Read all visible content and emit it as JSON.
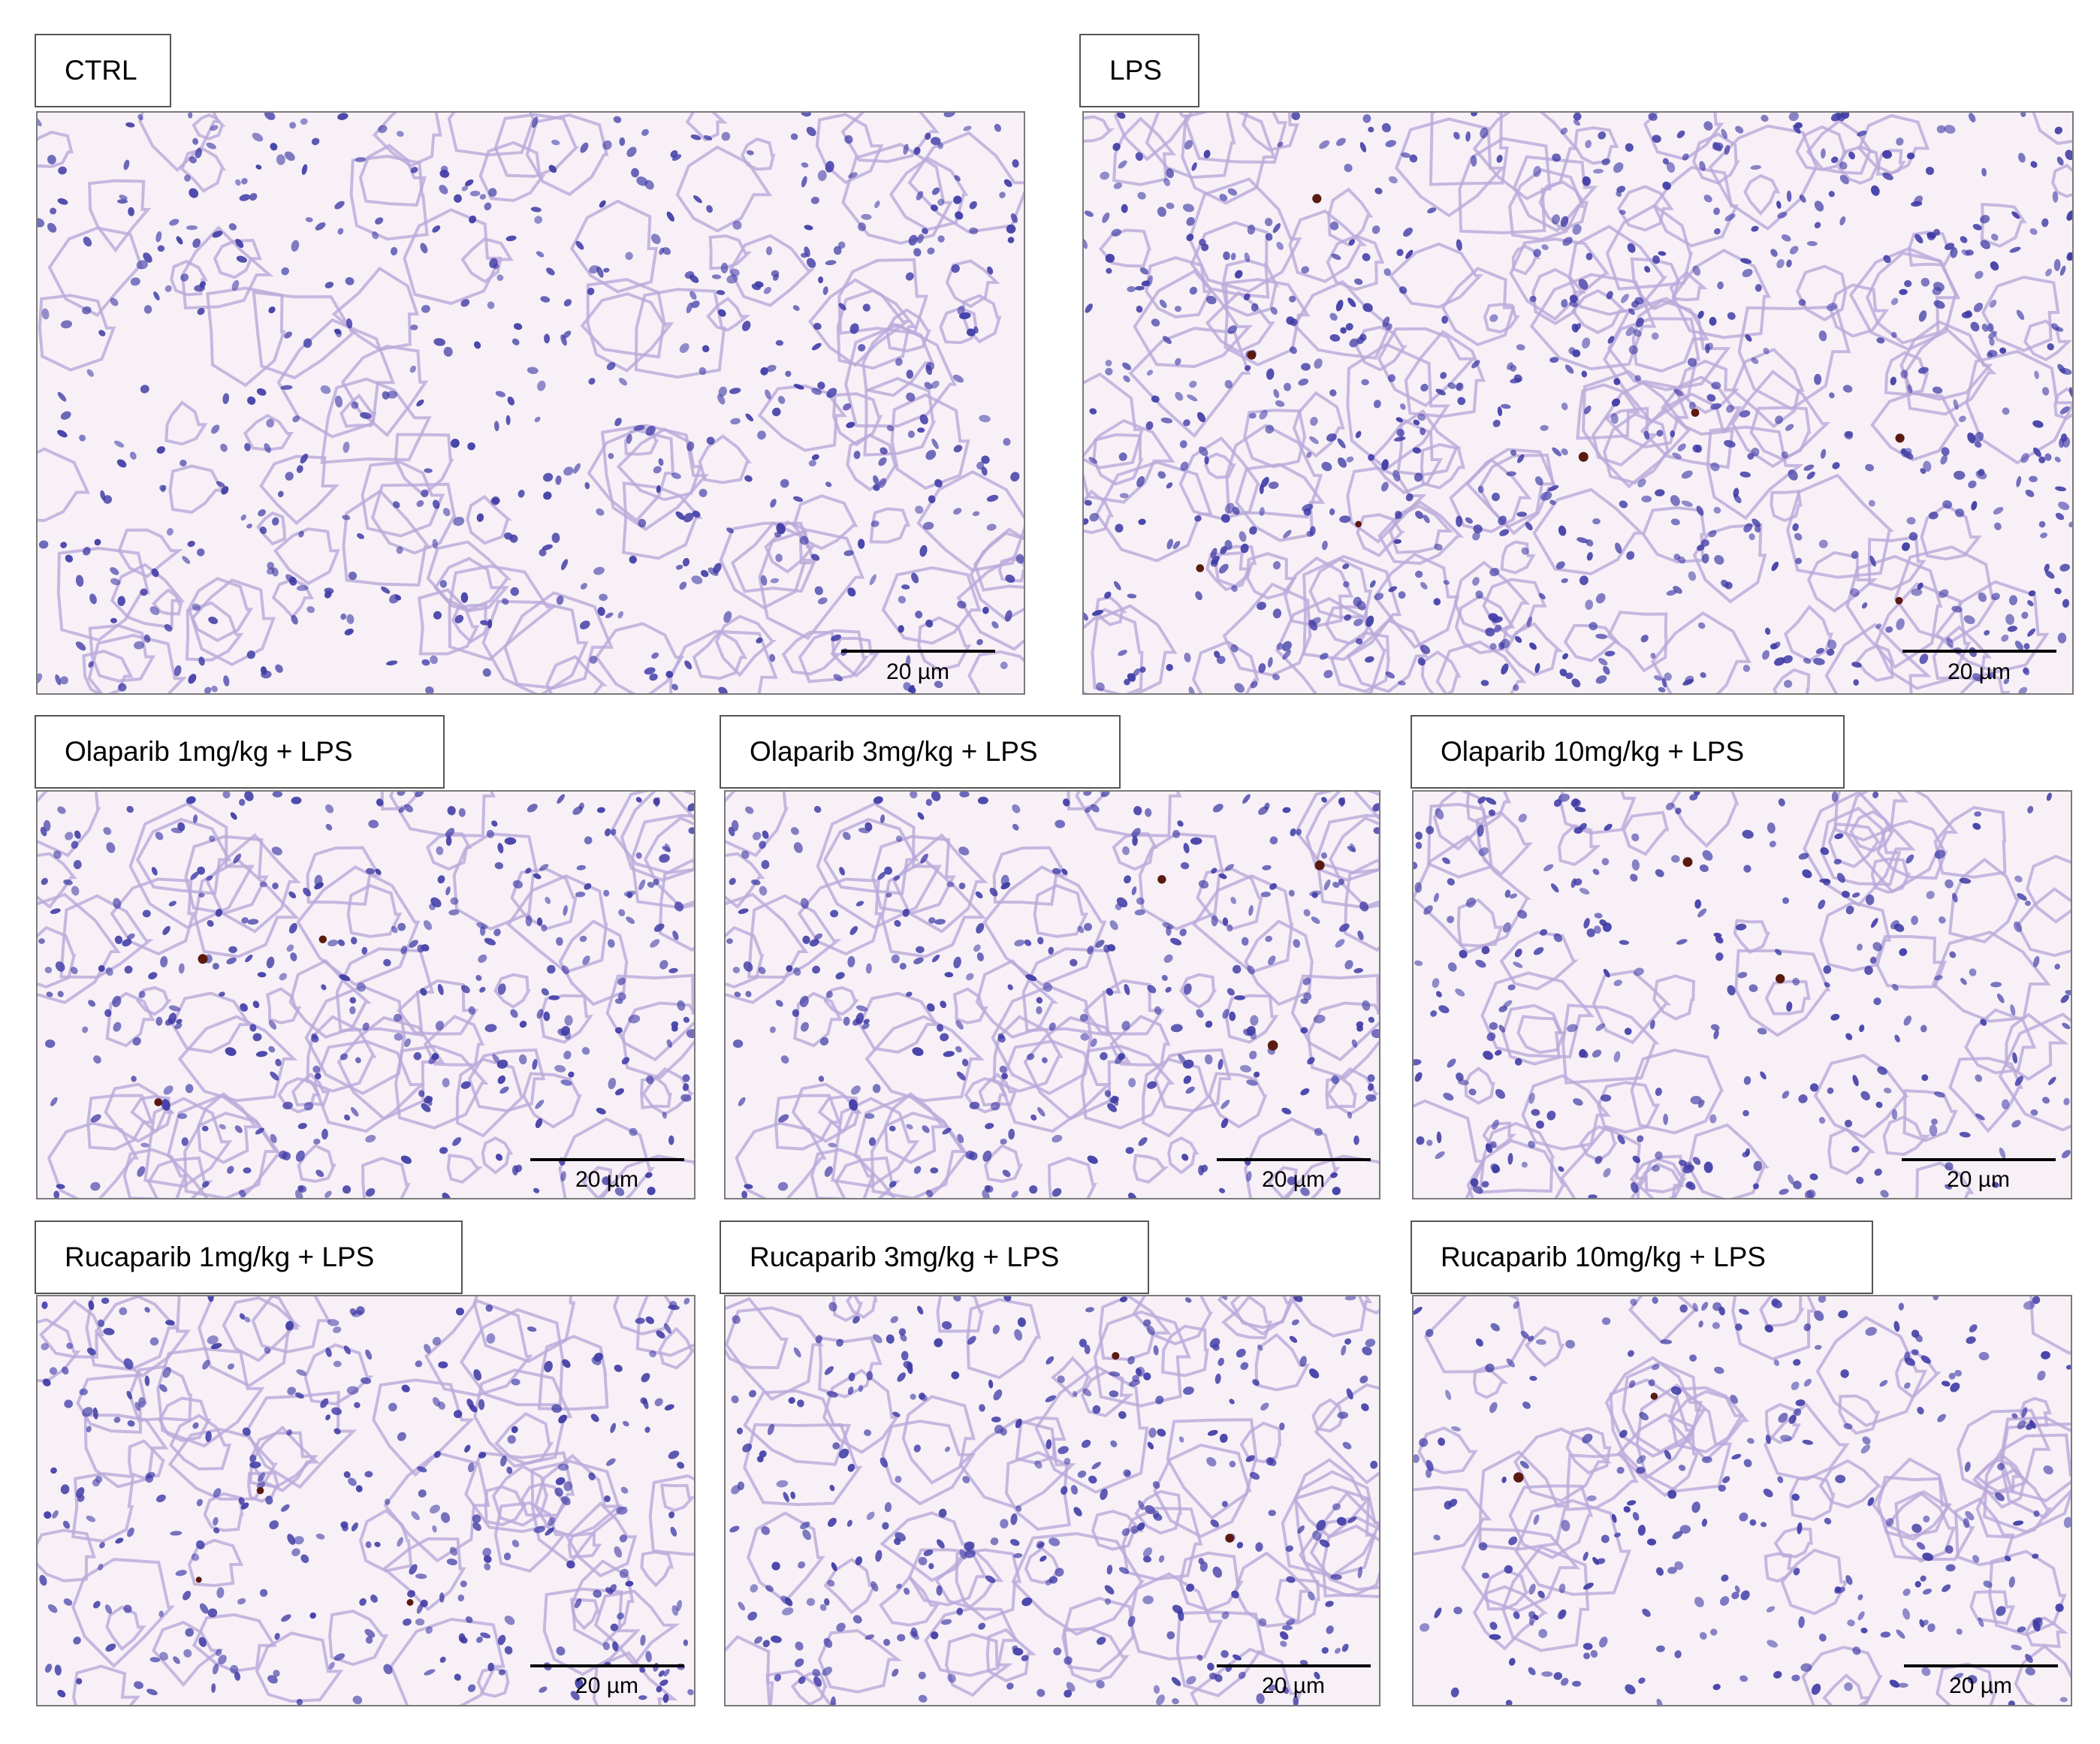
{
  "panels": [
    {
      "label": "CTRL",
      "scale_bar": "20 µm"
    },
    {
      "label": "LPS",
      "scale_bar": "20 µm"
    },
    {
      "label": "Olaparib 1mg/kg + LPS",
      "scale_bar": "20 µm"
    },
    {
      "label": "Olaparib 3mg/kg + LPS",
      "scale_bar": "20 µm"
    },
    {
      "label": "Olaparib 10mg/kg + LPS",
      "scale_bar": "20 µm"
    },
    {
      "label": "Rucaparib 1mg/kg + LPS",
      "scale_bar": "20 µm"
    },
    {
      "label": "Rucaparib 3mg/kg + LPS",
      "scale_bar": "20 µm"
    },
    {
      "label": "Rucaparib 10mg/kg + LPS",
      "scale_bar": "20 µm"
    }
  ],
  "colors": {
    "background": "#f7f1f7",
    "tissue": "#b9a9d9",
    "nuclei": "#3f3ba5",
    "stain_spot": "#5a1a10"
  }
}
